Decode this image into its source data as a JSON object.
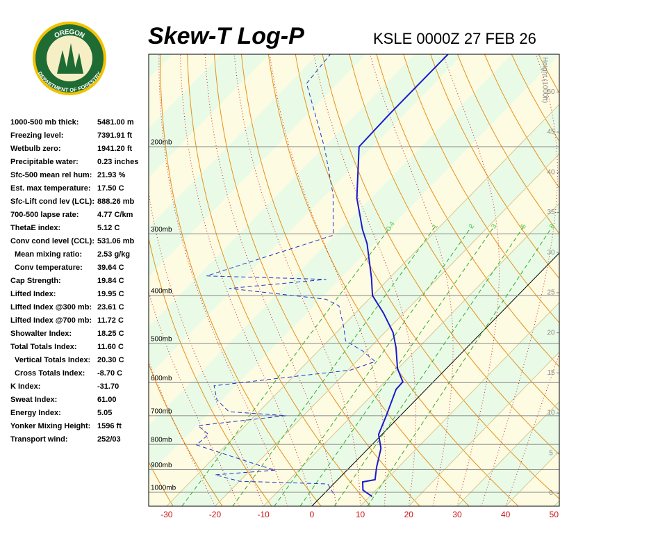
{
  "chart_data": {
    "type": "skewt",
    "title": "Skew-T Log-P",
    "subtitle": "KSLE 0000Z 27 FEB 26",
    "height_axis_label": "Height (1000ft)",
    "xlim": [
      -33.7,
      51.1
    ],
    "xticks": [
      -30,
      -20,
      -10,
      0,
      10,
      20,
      30,
      40,
      50
    ],
    "ylim": [
      1067,
      130
    ],
    "yticks": [
      {
        "value": 200,
        "label": "200mb"
      },
      {
        "value": 300,
        "label": "300mb"
      },
      {
        "value": 400,
        "label": "400mb"
      },
      {
        "value": 500,
        "label": "500mb"
      },
      {
        "value": 600,
        "label": "600mb"
      },
      {
        "value": 700,
        "label": "700mb"
      },
      {
        "value": 800,
        "label": "800mb"
      },
      {
        "value": 900,
        "label": "900mb"
      },
      {
        "value": 1000,
        "label": "1000mb"
      }
    ],
    "height_lim": [
      -1.6,
      54.7
    ],
    "height_ticks": [
      0,
      5,
      10,
      15,
      20,
      25,
      30,
      35,
      40,
      45,
      50
    ],
    "mixing_ratios": [
      0.4,
      1,
      2,
      3,
      5,
      8
    ],
    "series": [
      {
        "color": "#1a1acc",
        "dash": "solid",
        "pressure": [
          1020,
          990,
          953,
          943,
          890,
          815,
          764,
          700,
          619,
          598,
          562,
          510,
          475,
          434,
          400,
          369,
          314,
          294,
          254,
          200,
          172,
          130
        ],
        "values": [
          10.5,
          7.3,
          5.6,
          7.7,
          5.5,
          2.6,
          -0.7,
          -2.9,
          -6.2,
          -6.3,
          -10.1,
          -14.6,
          -18.3,
          -24.2,
          -30.0,
          -33.7,
          -41.6,
          -45.4,
          -52.9,
          -62.8,
          -63.1,
          -63.1
        ]
      },
      {
        "color": "#2233cc",
        "dash": "dashed",
        "pressure": [
          1006,
          962,
          950,
          922,
          902,
          884,
          802,
          764,
          733,
          700,
          687,
          650,
          609,
          566,
          544,
          518,
          494,
          463,
          420,
          407,
          387,
          371,
          365,
          302,
          250,
          201,
          149,
          130
        ],
        "values": [
          1.9,
          -1.2,
          -20.0,
          -26.3,
          -14.8,
          -18.8,
          -36.2,
          -35.8,
          -39.8,
          -23.6,
          -36.2,
          -41.1,
          -44.5,
          -19.5,
          -16.1,
          -20.8,
          -26.4,
          -29.6,
          -34.8,
          -38.8,
          -61.0,
          -42.8,
          -68.2,
          -50.3,
          -58.5,
          -69.7,
          -86.4,
          -87.4
        ]
      }
    ]
  },
  "logo": {
    "top": "OREGON",
    "bottom": "DEPARTMENT OF FORESTRY"
  },
  "stats": [
    {
      "label": "1000-500 mb thick:",
      "value": "5481.00 m"
    },
    {
      "label": "Freezing level:",
      "value": "7391.91 ft"
    },
    {
      "label": "Wetbulb zero:",
      "value": "1941.20 ft"
    },
    {
      "label": "Precipitable water:",
      "value": "0.23 inches"
    },
    {
      "label": "Sfc-500 mean rel hum:",
      "value": "21.93 %"
    },
    {
      "label": "Est. max temperature:",
      "value": "17.50 C"
    },
    {
      "label": "Sfc-Lift cond lev (LCL):",
      "value": "888.26 mb"
    },
    {
      "label": "700-500 lapse rate:",
      "value": "4.77 C/km"
    },
    {
      "label": "ThetaE index:",
      "value": "5.12 C"
    },
    {
      "label": "Conv cond level (CCL):",
      "value": "531.06 mb"
    },
    {
      "label": "Mean mixing ratio:",
      "value": "2.53 g/kg"
    },
    {
      "label": "Conv temperature:",
      "value": "39.64 C"
    },
    {
      "label": "Cap Strength:",
      "value": "19.84 C"
    },
    {
      "label": "Lifted Index:",
      "value": "19.95 C"
    },
    {
      "label": "Lifted Index @300 mb:",
      "value": "23.61 C"
    },
    {
      "label": "Lifted Index @700 mb:",
      "value": "11.72 C"
    },
    {
      "label": "Showalter Index:",
      "value": "18.25 C"
    },
    {
      "label": "Total Totals Index:",
      "value": "11.60 C"
    },
    {
      "label": "Vertical Totals Index:",
      "value": "20.30 C"
    },
    {
      "label": "Cross Totals Index:",
      "value": "-8.70 C"
    },
    {
      "label": "K Index:",
      "value": "-31.70"
    },
    {
      "label": "Sweat Index:",
      "value": "61.00"
    },
    {
      "label": "Energy Index:",
      "value": "5.05"
    },
    {
      "label": "Yonker Mixing Height:",
      "value": "1596 ft"
    },
    {
      "label": "Transport wind:",
      "value": "252/03"
    }
  ]
}
